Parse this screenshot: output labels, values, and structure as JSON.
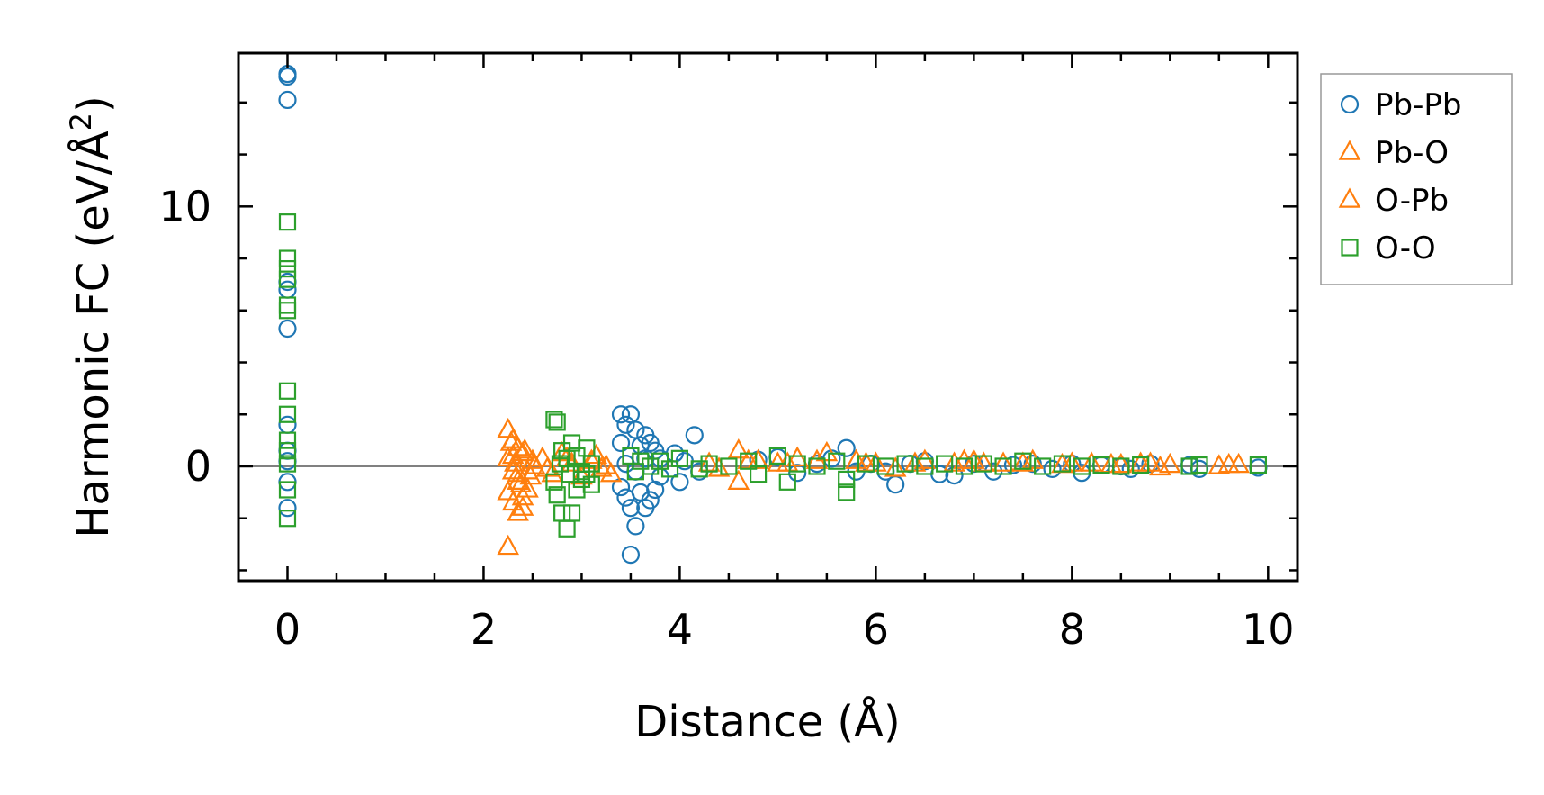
{
  "chart_data": {
    "type": "scatter",
    "title": "",
    "xlabel": "Distance (Å)",
    "ylabel_main": "Harmonic FC (eV/Å",
    "ylabel_sup": "2",
    "ylabel_close": ")",
    "xlim": [
      -0.5,
      10.3
    ],
    "ylim": [
      -4.4,
      15.9
    ],
    "xticks": [
      0,
      2,
      4,
      6,
      8,
      10
    ],
    "xtick_labels": [
      "0",
      "2",
      "4",
      "6",
      "8",
      "10"
    ],
    "yticks": [
      0,
      10
    ],
    "ytick_labels": [
      "0",
      "10"
    ],
    "reference_line_y": 0,
    "legend_position": "outside-right-top",
    "series": [
      {
        "name": "Pb-Pb",
        "marker": "circle",
        "color": "#1f77b4",
        "points": [
          [
            0,
            15.1
          ],
          [
            0,
            15.0
          ],
          [
            0,
            14.1
          ],
          [
            0,
            7.1
          ],
          [
            0,
            6.8
          ],
          [
            0,
            5.3
          ],
          [
            0,
            1.6
          ],
          [
            0,
            0.6
          ],
          [
            0,
            0.2
          ],
          [
            0,
            -0.6
          ],
          [
            0,
            -1.6
          ],
          [
            3.4,
            2.0
          ],
          [
            3.45,
            1.6
          ],
          [
            3.5,
            2.0
          ],
          [
            3.4,
            0.9
          ],
          [
            3.55,
            1.4
          ],
          [
            3.6,
            0.8
          ],
          [
            3.65,
            1.2
          ],
          [
            3.7,
            0.9
          ],
          [
            3.75,
            0.6
          ],
          [
            3.8,
            0.3
          ],
          [
            3.4,
            -0.8
          ],
          [
            3.45,
            -1.2
          ],
          [
            3.5,
            -1.6
          ],
          [
            3.55,
            -2.3
          ],
          [
            3.5,
            -3.4
          ],
          [
            3.6,
            -1.0
          ],
          [
            3.65,
            -1.6
          ],
          [
            3.7,
            -1.3
          ],
          [
            3.75,
            -0.9
          ],
          [
            3.8,
            -0.4
          ],
          [
            3.45,
            0.1
          ],
          [
            3.55,
            -0.2
          ],
          [
            3.65,
            0.3
          ],
          [
            3.95,
            0.5
          ],
          [
            4.0,
            -0.6
          ],
          [
            4.05,
            0.2
          ],
          [
            4.15,
            1.2
          ],
          [
            4.2,
            -0.2
          ],
          [
            4.8,
            0.25
          ],
          [
            5.0,
            0.35
          ],
          [
            5.2,
            -0.25
          ],
          [
            5.4,
            0.1
          ],
          [
            5.55,
            0.3
          ],
          [
            5.7,
            0.7
          ],
          [
            5.8,
            -0.2
          ],
          [
            5.95,
            0.1
          ],
          [
            6.1,
            -0.2
          ],
          [
            6.2,
            -0.7
          ],
          [
            6.35,
            0.1
          ],
          [
            6.5,
            0.2
          ],
          [
            6.65,
            -0.3
          ],
          [
            6.8,
            -0.35
          ],
          [
            7.0,
            0.1
          ],
          [
            7.2,
            -0.2
          ],
          [
            7.4,
            0.05
          ],
          [
            7.6,
            0.1
          ],
          [
            7.8,
            -0.1
          ],
          [
            8.0,
            0.1
          ],
          [
            8.1,
            -0.25
          ],
          [
            8.3,
            0.05
          ],
          [
            8.5,
            0.0
          ],
          [
            8.6,
            -0.1
          ],
          [
            8.8,
            0.1
          ],
          [
            9.2,
            0.05
          ],
          [
            9.3,
            -0.1
          ],
          [
            9.9,
            -0.05
          ]
        ]
      },
      {
        "name": "Pb-O",
        "marker": "triangle",
        "color": "#ff7f0e",
        "points": [
          [
            2.25,
            1.4
          ],
          [
            2.3,
            1.0
          ],
          [
            2.35,
            0.7
          ],
          [
            2.25,
            0.3
          ],
          [
            2.3,
            -0.2
          ],
          [
            2.35,
            -0.6
          ],
          [
            2.25,
            -1.0
          ],
          [
            2.3,
            -1.4
          ],
          [
            2.35,
            -1.8
          ],
          [
            2.25,
            -3.1
          ],
          [
            2.4,
            0.5
          ],
          [
            2.45,
            -0.2
          ],
          [
            2.5,
            0.2
          ],
          [
            2.45,
            -0.9
          ],
          [
            2.4,
            -1.6
          ],
          [
            2.3,
            0.4
          ],
          [
            2.35,
            -0.3
          ],
          [
            2.4,
            -1.2
          ],
          [
            2.6,
            0.3
          ],
          [
            2.7,
            -0.3
          ],
          [
            2.8,
            0.5
          ],
          [
            2.9,
            0.1
          ],
          [
            3.0,
            -0.4
          ],
          [
            3.15,
            0.4
          ],
          [
            3.25,
            0.0
          ],
          [
            3.3,
            -0.3
          ],
          [
            4.3,
            0.1
          ],
          [
            4.6,
            0.6
          ],
          [
            4.6,
            -0.6
          ],
          [
            4.8,
            0.2
          ],
          [
            5.0,
            0.1
          ],
          [
            5.2,
            0.3
          ],
          [
            5.5,
            0.5
          ],
          [
            5.8,
            0.2
          ],
          [
            6.0,
            0.1
          ],
          [
            6.2,
            -0.1
          ],
          [
            6.5,
            0.2
          ],
          [
            6.8,
            0.1
          ],
          [
            7.0,
            0.2
          ],
          [
            7.3,
            0.1
          ],
          [
            7.6,
            0.2
          ],
          [
            7.9,
            0.05
          ],
          [
            8.2,
            0.1
          ],
          [
            8.5,
            0.05
          ],
          [
            8.8,
            0.1
          ],
          [
            8.9,
            -0.05
          ],
          [
            9.5,
            0.0
          ],
          [
            9.7,
            0.05
          ]
        ]
      },
      {
        "name": "O-Pb",
        "marker": "triangle",
        "color": "#ff7f0e",
        "points": [
          [
            2.28,
            0.9
          ],
          [
            2.32,
            0.1
          ],
          [
            2.38,
            -0.7
          ],
          [
            2.42,
            0.6
          ],
          [
            2.48,
            -0.4
          ],
          [
            2.52,
            0.0
          ],
          [
            2.65,
            -0.1
          ],
          [
            2.85,
            0.3
          ],
          [
            3.1,
            0.2
          ],
          [
            3.2,
            -0.1
          ],
          [
            4.4,
            -0.1
          ],
          [
            4.7,
            0.2
          ],
          [
            5.1,
            0.1
          ],
          [
            5.4,
            0.2
          ],
          [
            5.9,
            0.1
          ],
          [
            6.4,
            0.1
          ],
          [
            6.9,
            0.2
          ],
          [
            7.1,
            0.1
          ],
          [
            7.5,
            0.1
          ],
          [
            8.0,
            0.1
          ],
          [
            8.4,
            0.05
          ],
          [
            8.7,
            0.1
          ],
          [
            9.0,
            0.05
          ],
          [
            9.6,
            0.05
          ]
        ]
      },
      {
        "name": "O-O",
        "marker": "square",
        "color": "#2ca02c",
        "points": [
          [
            0,
            9.4
          ],
          [
            0,
            8.0
          ],
          [
            0,
            7.6
          ],
          [
            0,
            7.2
          ],
          [
            0,
            6.2
          ],
          [
            0,
            6.0
          ],
          [
            0,
            2.9
          ],
          [
            0,
            2.0
          ],
          [
            0,
            1.0
          ],
          [
            0,
            0.6
          ],
          [
            0,
            0.1
          ],
          [
            0,
            -0.9
          ],
          [
            0,
            -2.0
          ],
          [
            2.72,
            1.8
          ],
          [
            2.75,
            1.7
          ],
          [
            2.8,
            0.6
          ],
          [
            2.78,
            0.1
          ],
          [
            2.72,
            -0.6
          ],
          [
            2.75,
            -1.1
          ],
          [
            2.8,
            -1.8
          ],
          [
            2.85,
            -2.4
          ],
          [
            2.9,
            -1.8
          ],
          [
            2.9,
            0.9
          ],
          [
            2.95,
            0.4
          ],
          [
            3.0,
            -0.2
          ],
          [
            3.05,
            0.7
          ],
          [
            3.1,
            0.1
          ],
          [
            2.95,
            -0.9
          ],
          [
            3.0,
            -0.5
          ],
          [
            3.05,
            -0.3
          ],
          [
            3.1,
            -0.7
          ],
          [
            2.85,
            0.3
          ],
          [
            2.88,
            -0.3
          ],
          [
            3.5,
            0.4
          ],
          [
            3.55,
            -0.2
          ],
          [
            3.6,
            0.2
          ],
          [
            3.7,
            0.0
          ],
          [
            3.8,
            0.2
          ],
          [
            3.9,
            -0.1
          ],
          [
            4.0,
            0.3
          ],
          [
            4.2,
            -0.1
          ],
          [
            4.3,
            0.1
          ],
          [
            4.5,
            0.0
          ],
          [
            4.7,
            0.2
          ],
          [
            4.8,
            -0.3
          ],
          [
            5.0,
            0.4
          ],
          [
            5.1,
            -0.6
          ],
          [
            5.2,
            0.1
          ],
          [
            5.4,
            0.0
          ],
          [
            5.6,
            0.2
          ],
          [
            5.7,
            -0.5
          ],
          [
            5.7,
            -1.0
          ],
          [
            5.9,
            0.1
          ],
          [
            6.1,
            0.0
          ],
          [
            6.3,
            0.1
          ],
          [
            6.5,
            0.0
          ],
          [
            6.7,
            0.1
          ],
          [
            6.9,
            0.0
          ],
          [
            7.1,
            0.1
          ],
          [
            7.3,
            0.0
          ],
          [
            7.5,
            0.2
          ],
          [
            7.7,
            0.0
          ],
          [
            7.9,
            0.1
          ],
          [
            8.1,
            0.0
          ],
          [
            8.3,
            0.05
          ],
          [
            8.5,
            0.0
          ],
          [
            8.7,
            0.05
          ],
          [
            9.2,
            0.0
          ],
          [
            9.3,
            0.05
          ],
          [
            9.9,
            0.05
          ]
        ]
      }
    ]
  }
}
